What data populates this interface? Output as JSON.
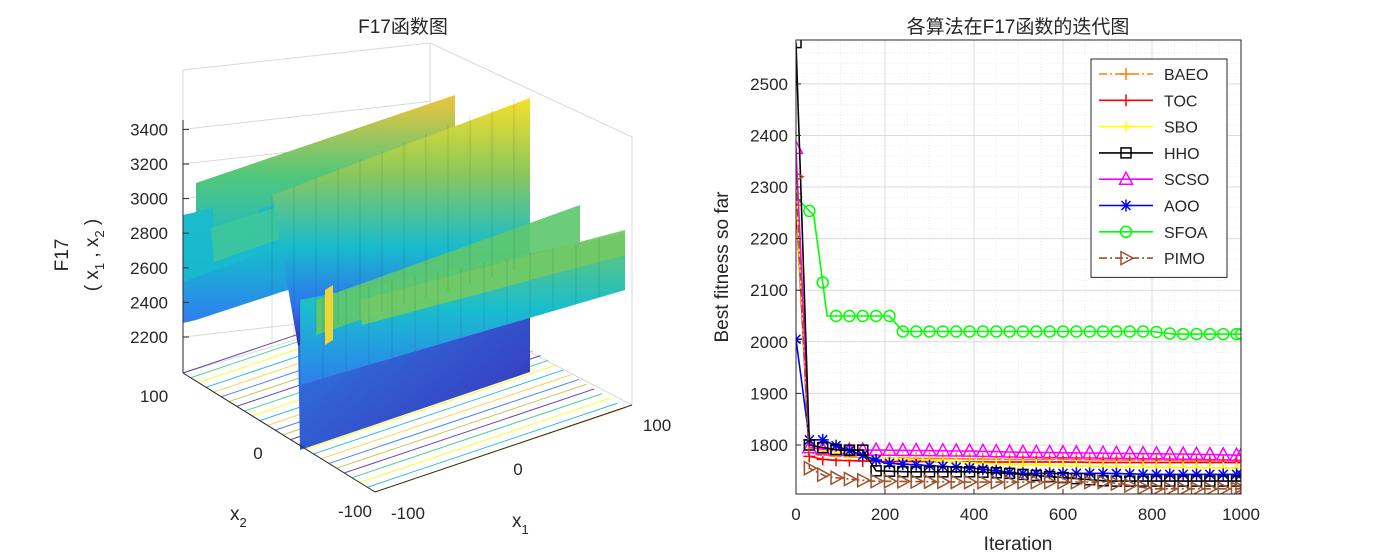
{
  "chart_data": [
    {
      "type": "surface",
      "title": "F17函数图",
      "xlabel": "x",
      "xlabel_sub": "1",
      "ylabel": "x",
      "ylabel_sub": "2",
      "zlabel_line1": "F17",
      "zlabel_line2_parts": [
        "( x",
        "1",
        " , x",
        "2",
        " )"
      ],
      "x_ticks": [
        "-100",
        "0",
        "100"
      ],
      "y_ticks": [
        "-100",
        "0",
        "100"
      ],
      "z_ticks": [
        "2200",
        "2400",
        "2600",
        "2800",
        "3000",
        "3200",
        "3400"
      ],
      "xlim": [
        -100,
        100
      ],
      "ylim": [
        -100,
        100
      ],
      "zlim": [
        2100,
        3450
      ],
      "colormap": [
        "#3e26a8",
        "#2e6ff0",
        "#14b1d4",
        "#38c786",
        "#bcbd3e",
        "#f9cc2f",
        "#f9fb15"
      ]
    },
    {
      "type": "line",
      "title": "各算法在F17函数的迭代图",
      "xlabel": "Iteration",
      "ylabel": "Best fitness so far",
      "xlim": [
        0,
        1000
      ],
      "ylim": [
        1705,
        2585
      ],
      "x_ticks": [
        0,
        200,
        400,
        600,
        800,
        1000
      ],
      "y_ticks": [
        1800,
        1900,
        2000,
        2100,
        2200,
        2300,
        2400,
        2500
      ],
      "grid": true,
      "legend_position": "top-right",
      "series": [
        {
          "name": "BAEO",
          "color": "#ff7f00",
          "marker": "plus",
          "dash": "dashdot",
          "x": [
            0,
            30,
            60,
            100,
            150,
            200,
            300,
            400,
            500,
            600,
            700,
            800,
            900,
            1000
          ],
          "y": [
            2265,
            1785,
            1780,
            1778,
            1776,
            1775,
            1774,
            1773,
            1772,
            1772,
            1771,
            1771,
            1770,
            1770
          ]
        },
        {
          "name": "TOC",
          "color": "#ff0000",
          "marker": "plus",
          "dash": "solid",
          "x": [
            0,
            30,
            60,
            100,
            150,
            200,
            300,
            400,
            500,
            600,
            700,
            800,
            900,
            1000
          ],
          "y": [
            2275,
            1778,
            1772,
            1770,
            1769,
            1768,
            1768,
            1767,
            1767,
            1767,
            1766,
            1766,
            1766,
            1766
          ]
        },
        {
          "name": "SBO",
          "color": "#ffff00",
          "marker": "plus",
          "dash": "solid",
          "x": [
            0,
            30,
            60,
            100,
            150,
            200,
            300,
            400,
            500,
            600,
            700,
            800,
            900,
            1000
          ],
          "y": [
            2290,
            1795,
            1790,
            1785,
            1780,
            1775,
            1770,
            1765,
            1762,
            1760,
            1758,
            1757,
            1756,
            1755
          ]
        },
        {
          "name": "HHO",
          "color": "#000000",
          "marker": "square",
          "dash": "solid",
          "x": [
            0,
            30,
            60,
            100,
            150,
            180,
            250,
            400,
            480,
            700,
            1000
          ],
          "y": [
            2580,
            1800,
            1795,
            1790,
            1790,
            1750,
            1748,
            1748,
            1745,
            1730,
            1730
          ]
        },
        {
          "name": "SCSO",
          "color": "#ff00ff",
          "marker": "triangle",
          "dash": "solid",
          "x": [
            0,
            30,
            60,
            100,
            150,
            200,
            300,
            400,
            500,
            600,
            700,
            800,
            900,
            1000
          ],
          "y": [
            2375,
            1795,
            1792,
            1790,
            1790,
            1790,
            1789,
            1788,
            1786,
            1785,
            1784,
            1783,
            1782,
            1780
          ]
        },
        {
          "name": "AOO",
          "color": "#0000ff",
          "marker": "star",
          "dash": "solid",
          "x": [
            0,
            30,
            60,
            100,
            150,
            200,
            300,
            400,
            500,
            600,
            700,
            800,
            900,
            1000
          ],
          "y": [
            2005,
            1810,
            1810,
            1795,
            1780,
            1765,
            1760,
            1755,
            1745,
            1745,
            1745,
            1743,
            1743,
            1743
          ]
        },
        {
          "name": "SFOA",
          "color": "#00ff00",
          "marker": "circle",
          "dash": "solid",
          "x": [
            0,
            40,
            70,
            210,
            240,
            800,
            850,
            1000
          ],
          "y": [
            2280,
            2245,
            2050,
            2050,
            2020,
            2020,
            2015,
            2015
          ]
        },
        {
          "name": "PIMO",
          "color": "#a0522d",
          "marker": "triangle-right",
          "dash": "dashdot",
          "x": [
            0,
            30,
            70,
            170,
            400,
            700,
            800,
            1000
          ],
          "y": [
            2320,
            1755,
            1738,
            1730,
            1728,
            1728,
            1715,
            1715
          ]
        }
      ]
    }
  ]
}
